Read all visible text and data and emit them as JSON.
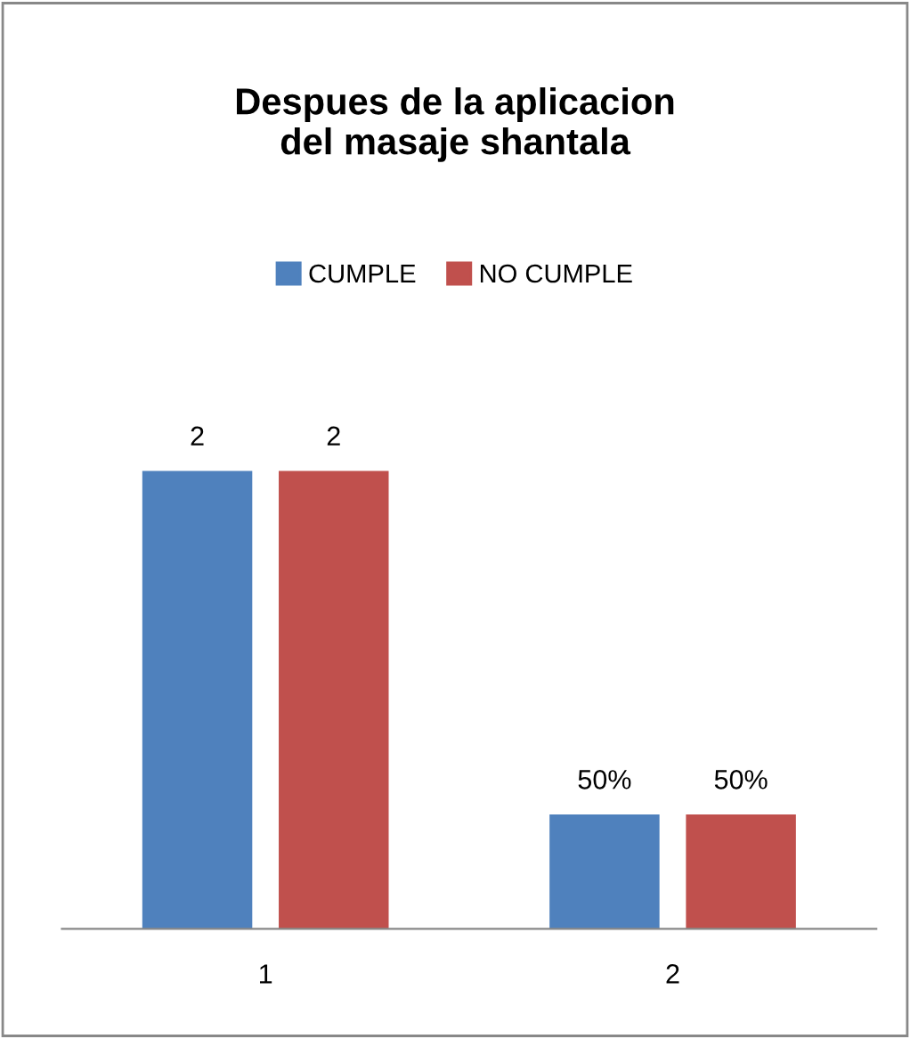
{
  "chart_data": {
    "type": "bar",
    "title": "Despues de la aplicacion\ndel masaje shantala",
    "categories": [
      "1",
      "2"
    ],
    "legend": "top",
    "series": [
      {
        "name": "CUMPLE",
        "color": "#4f81bd",
        "values": [
          2,
          0.5
        ],
        "value_labels": [
          "2",
          "50%"
        ]
      },
      {
        "name": "NO CUMPLE",
        "color": "#c0504d",
        "values": [
          2,
          0.5
        ],
        "value_labels": [
          "2",
          "50%"
        ]
      }
    ]
  }
}
